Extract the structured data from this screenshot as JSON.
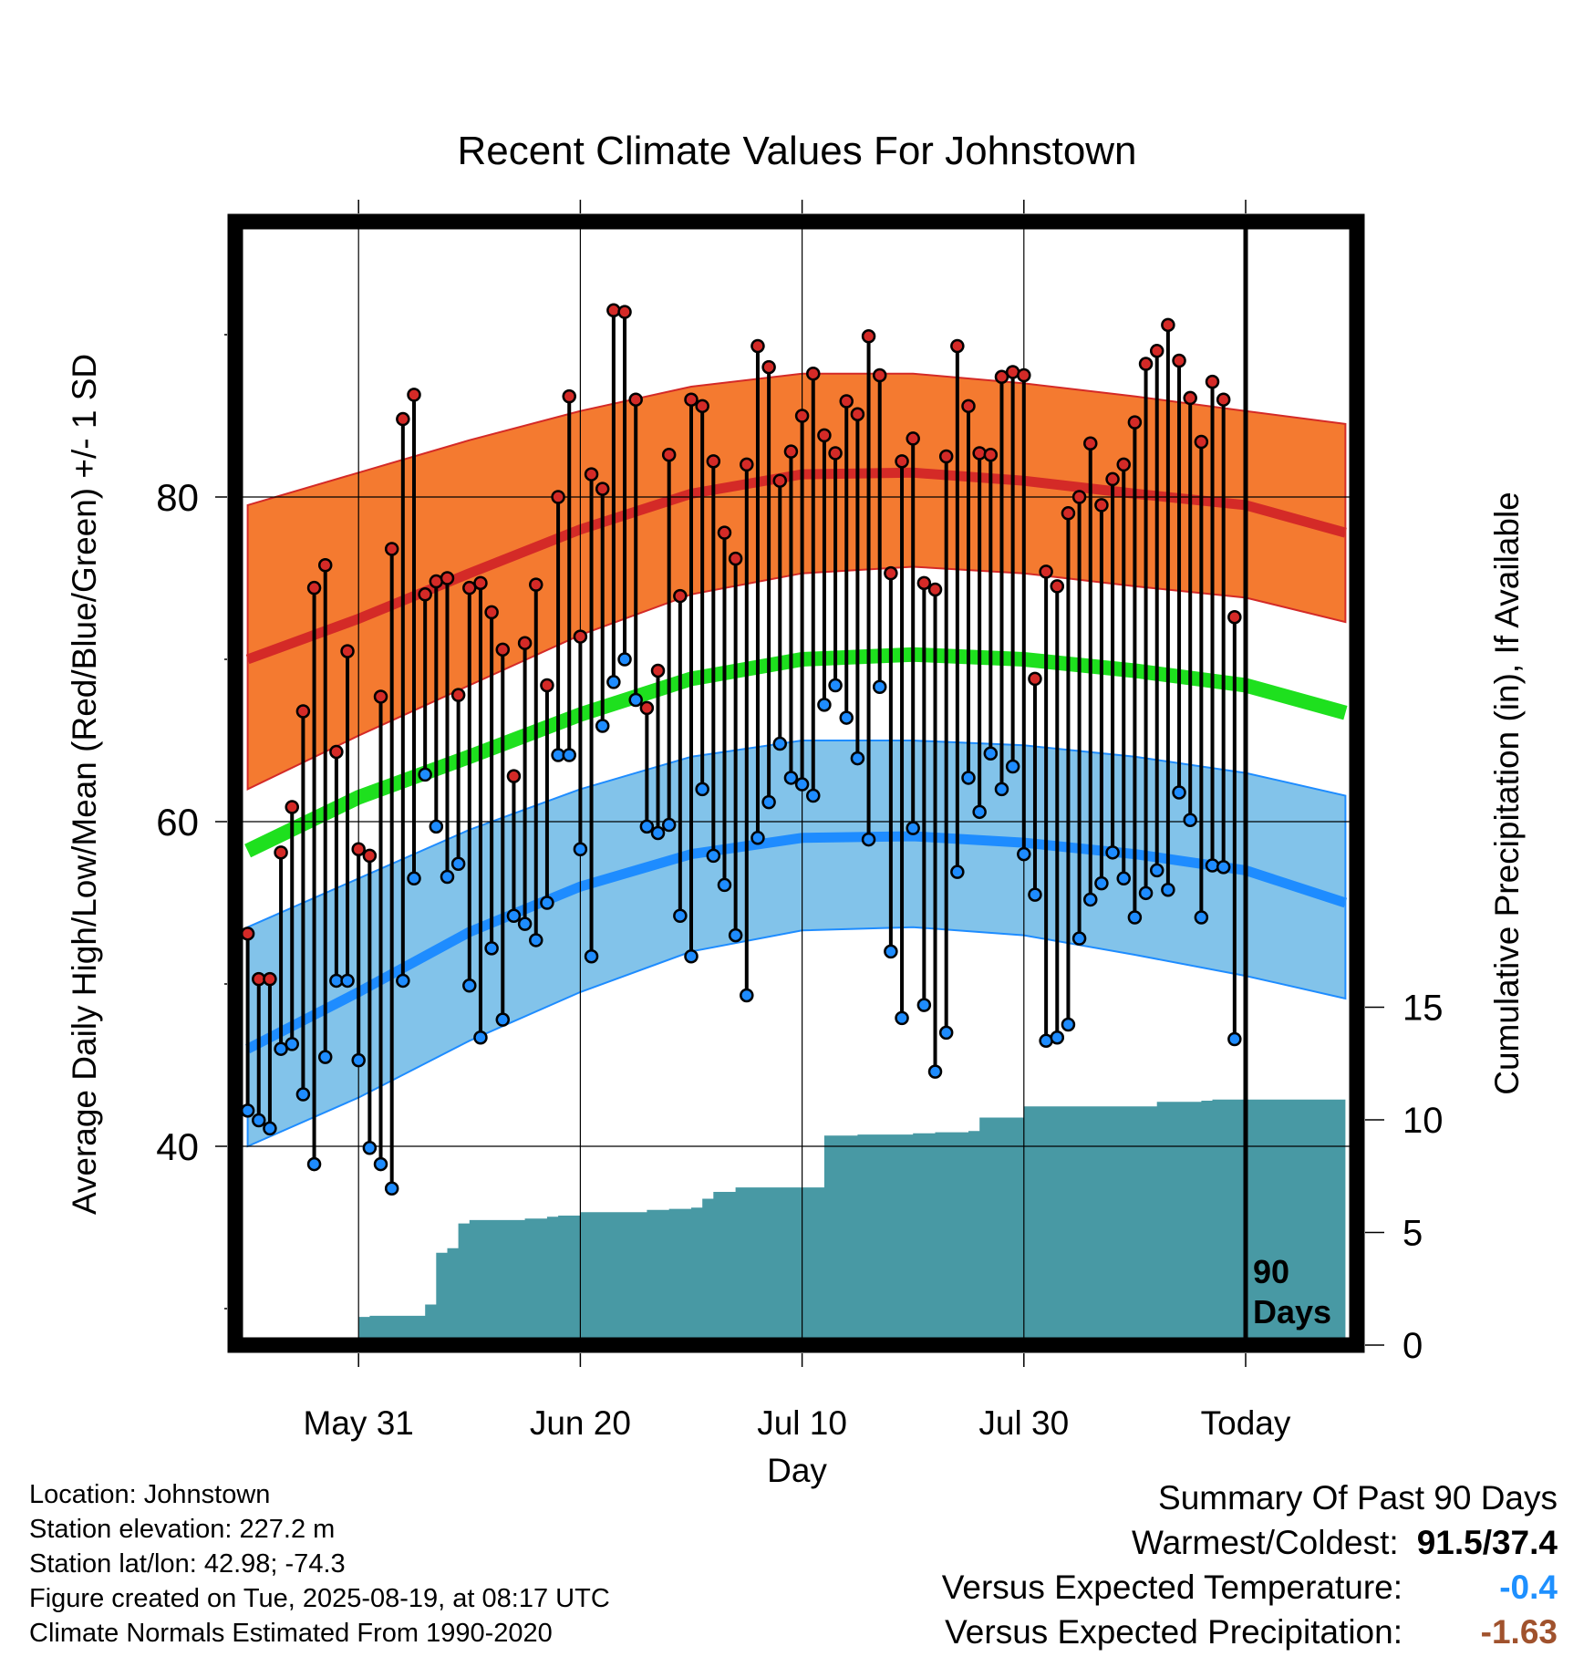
{
  "title": "Recent Climate Values For Johnstown",
  "chart_data": {
    "type": "line",
    "title": "Recent Climate Values For Johnstown",
    "xlabel": "Day",
    "ylabel": "Average Daily High/Low/Mean (Red/Blue/Green) +/- 1 SD",
    "y2label": "Cumulative Precipitation (in), If Available",
    "xlim": [
      -90,
      9
    ],
    "ylim": [
      28,
      96
    ],
    "y_ticks": [
      40,
      60,
      80
    ],
    "y2lim": [
      0,
      27
    ],
    "y2_ticks": [
      0,
      5,
      10,
      15
    ],
    "x_ticks": [
      {
        "day": -80,
        "label": "May 31"
      },
      {
        "day": -60,
        "label": "Jun 20"
      },
      {
        "day": -40,
        "label": "Jul 10"
      },
      {
        "day": -20,
        "label": "Jul 30"
      },
      {
        "day": 0,
        "label": "Today"
      }
    ],
    "today_marker": {
      "day": 0,
      "label_line1": "90",
      "label_line2": "Days"
    },
    "grid": true,
    "colors": {
      "high_band": "#f47a30",
      "high_mean": "#d42a27",
      "low_band": "#82c3ea",
      "low_mean": "#1e8cff",
      "mean_line": "#1ee01e",
      "precip": "#4899a4",
      "high_point": "#d42a27",
      "low_point": "#1e8cff"
    },
    "normals": {
      "day": [
        -90,
        -80,
        -70,
        -60,
        -50,
        -40,
        -30,
        -20,
        -10,
        0,
        9
      ],
      "high_mean": [
        70.0,
        72.5,
        75.3,
        78.0,
        80.2,
        81.4,
        81.5,
        81.0,
        80.2,
        79.5,
        77.8
      ],
      "high_upper": [
        79.5,
        81.5,
        83.5,
        85.3,
        86.8,
        87.6,
        87.6,
        87.0,
        86.2,
        85.3,
        84.5
      ],
      "high_lower": [
        62.0,
        65.3,
        68.4,
        71.5,
        74.0,
        75.3,
        75.7,
        75.3,
        74.5,
        73.8,
        72.3
      ],
      "mean": [
        58.2,
        61.5,
        64.0,
        66.6,
        68.8,
        70.0,
        70.3,
        70.0,
        69.3,
        68.4,
        66.7
      ],
      "low_mean": [
        46.0,
        49.5,
        53.2,
        56.0,
        58.0,
        59.0,
        59.1,
        58.7,
        58.0,
        57.0,
        55.0
      ],
      "low_upper": [
        53.5,
        56.5,
        59.5,
        62.0,
        64.0,
        65.0,
        65.0,
        64.7,
        64.0,
        63.0,
        61.6
      ],
      "low_lower": [
        40.0,
        43.0,
        46.5,
        49.5,
        52.0,
        53.3,
        53.5,
        53.0,
        51.8,
        50.5,
        49.1
      ]
    },
    "series": [
      {
        "name": "High",
        "day": [
          -90,
          -89,
          -88,
          -87,
          -86,
          -85,
          -84,
          -83,
          -82,
          -81,
          -80,
          -79,
          -78,
          -77,
          -76,
          -75,
          -74,
          -73,
          -72,
          -71,
          -70,
          -69,
          -68,
          -67,
          -66,
          -65,
          -64,
          -63,
          -62,
          -61,
          -60,
          -59,
          -58,
          -57,
          -56,
          -55,
          -54,
          -53,
          -52,
          -51,
          -50,
          -49,
          -48,
          -47,
          -46,
          -45,
          -44,
          -43,
          -42,
          -41,
          -40,
          -39,
          -38,
          -37,
          -36,
          -35,
          -34,
          -33,
          -32,
          -31,
          -30,
          -29,
          -28,
          -27,
          -26,
          -25,
          -24,
          -23,
          -22,
          -21,
          -20,
          -19,
          -18,
          -17,
          -16,
          -15,
          -14,
          -13,
          -12,
          -11,
          -10,
          -9,
          -8,
          -7,
          -6,
          -5,
          -4,
          -3,
          -2,
          -1
        ],
        "values": [
          53.1,
          50.3,
          50.3,
          58.1,
          60.9,
          66.8,
          74.4,
          75.8,
          64.3,
          70.5,
          58.3,
          57.9,
          67.7,
          76.8,
          84.8,
          86.3,
          74.0,
          74.8,
          75.0,
          67.8,
          74.4,
          74.7,
          72.9,
          70.6,
          62.8,
          71.0,
          74.6,
          68.4,
          80.0,
          86.2,
          71.4,
          81.4,
          80.5,
          91.5,
          91.4,
          86.0,
          67.0,
          69.3,
          82.6,
          73.9,
          86.0,
          85.6,
          82.2,
          77.8,
          76.2,
          82.0,
          89.3,
          88.0,
          81.0,
          82.8,
          85.0,
          87.6,
          83.8,
          82.7,
          85.9,
          85.1,
          89.9,
          87.5,
          75.3,
          82.2,
          83.6,
          74.7,
          74.3,
          82.5,
          89.3,
          85.6,
          82.7,
          82.6,
          87.4,
          87.7,
          87.5,
          68.8,
          75.4,
          74.5,
          79.0,
          80.0,
          83.3,
          79.5,
          81.1,
          82.0,
          84.6,
          88.2,
          89.0,
          90.6,
          88.4,
          86.1,
          83.4,
          87.1,
          86.0,
          72.6
        ]
      },
      {
        "name": "Low",
        "day": [
          -90,
          -89,
          -88,
          -87,
          -86,
          -85,
          -84,
          -83,
          -82,
          -81,
          -80,
          -79,
          -78,
          -77,
          -76,
          -75,
          -74,
          -73,
          -72,
          -71,
          -70,
          -69,
          -68,
          -67,
          -66,
          -65,
          -64,
          -63,
          -62,
          -61,
          -60,
          -59,
          -58,
          -57,
          -56,
          -55,
          -54,
          -53,
          -52,
          -51,
          -50,
          -49,
          -48,
          -47,
          -46,
          -45,
          -44,
          -43,
          -42,
          -41,
          -40,
          -39,
          -38,
          -37,
          -36,
          -35,
          -34,
          -33,
          -32,
          -31,
          -30,
          -29,
          -28,
          -27,
          -26,
          -25,
          -24,
          -23,
          -22,
          -21,
          -20,
          -19,
          -18,
          -17,
          -16,
          -15,
          -14,
          -13,
          -12,
          -11,
          -10,
          -9,
          -8,
          -7,
          -6,
          -5,
          -4,
          -3,
          -2,
          -1
        ],
        "values": [
          42.2,
          41.6,
          41.1,
          46.0,
          46.3,
          43.2,
          38.9,
          45.5,
          50.2,
          50.2,
          45.3,
          39.9,
          38.9,
          37.4,
          50.2,
          56.5,
          62.9,
          59.7,
          56.6,
          57.4,
          49.9,
          46.7,
          52.2,
          47.8,
          54.2,
          53.7,
          52.7,
          55.0,
          64.1,
          64.1,
          58.3,
          51.7,
          65.9,
          68.6,
          70.0,
          67.5,
          59.7,
          59.3,
          59.8,
          54.2,
          51.7,
          62.0,
          57.9,
          56.1,
          53.0,
          49.3,
          59.0,
          61.2,
          64.8,
          62.7,
          62.3,
          61.6,
          67.2,
          68.4,
          66.4,
          63.9,
          58.9,
          68.3,
          52.0,
          47.9,
          59.6,
          48.7,
          44.6,
          47.0,
          56.9,
          62.7,
          60.6,
          64.2,
          62.0,
          63.4,
          58.0,
          55.5,
          46.5,
          46.7,
          47.5,
          52.8,
          55.2,
          56.2,
          58.1,
          56.5,
          54.1,
          55.6,
          57.0,
          55.8,
          61.8,
          60.1,
          54.1,
          57.3,
          57.2,
          46.6
        ]
      }
    ],
    "precip": {
      "name": "Cumulative Precipitation",
      "day": [
        -90,
        -82,
        -81,
        -80,
        -79,
        -77,
        -76,
        -74,
        -73,
        -72,
        -71,
        -70,
        -65,
        -63,
        -62,
        -60,
        -54,
        -52,
        -50,
        -49,
        -48,
        -46,
        -40,
        -39,
        -38,
        -35,
        -30,
        -28,
        -27,
        -25,
        -24,
        -22,
        -21,
        -20,
        -19,
        -14,
        -12,
        -11,
        -9,
        -8,
        -6,
        -5,
        -4,
        -3,
        -2,
        -1,
        0,
        9
      ],
      "values": [
        0.0,
        0.25,
        0.25,
        1.25,
        1.3,
        1.3,
        1.3,
        1.8,
        4.1,
        4.3,
        5.4,
        5.55,
        5.62,
        5.7,
        5.75,
        5.9,
        6.0,
        6.05,
        6.1,
        6.5,
        6.8,
        7.0,
        7.0,
        7.0,
        9.3,
        9.35,
        9.4,
        9.45,
        9.45,
        9.5,
        10.1,
        10.1,
        10.1,
        10.6,
        10.6,
        10.6,
        10.6,
        10.6,
        10.6,
        10.8,
        10.8,
        10.8,
        10.85,
        10.9,
        10.9,
        10.9,
        10.9,
        10.9
      ]
    }
  },
  "footer": {
    "location": "Location: Johnstown",
    "elevation": "Station elevation: 227.2 m",
    "latlon": "Station lat/lon: 42.98; -74.3",
    "created": "Figure created on Tue, 2025-08-19, at 08:17 UTC",
    "normals": "Climate Normals Estimated From 1990-2020"
  },
  "summary": {
    "heading": "Summary Of Past 90 Days",
    "warm_cold_label": "Warmest/Coldest:",
    "warm_cold_value": "91.5/37.4",
    "temp_label": "Versus Expected Temperature:",
    "temp_value": "-0.4",
    "precip_label": "Versus Expected Precipitation:",
    "precip_value": "-1.63"
  }
}
